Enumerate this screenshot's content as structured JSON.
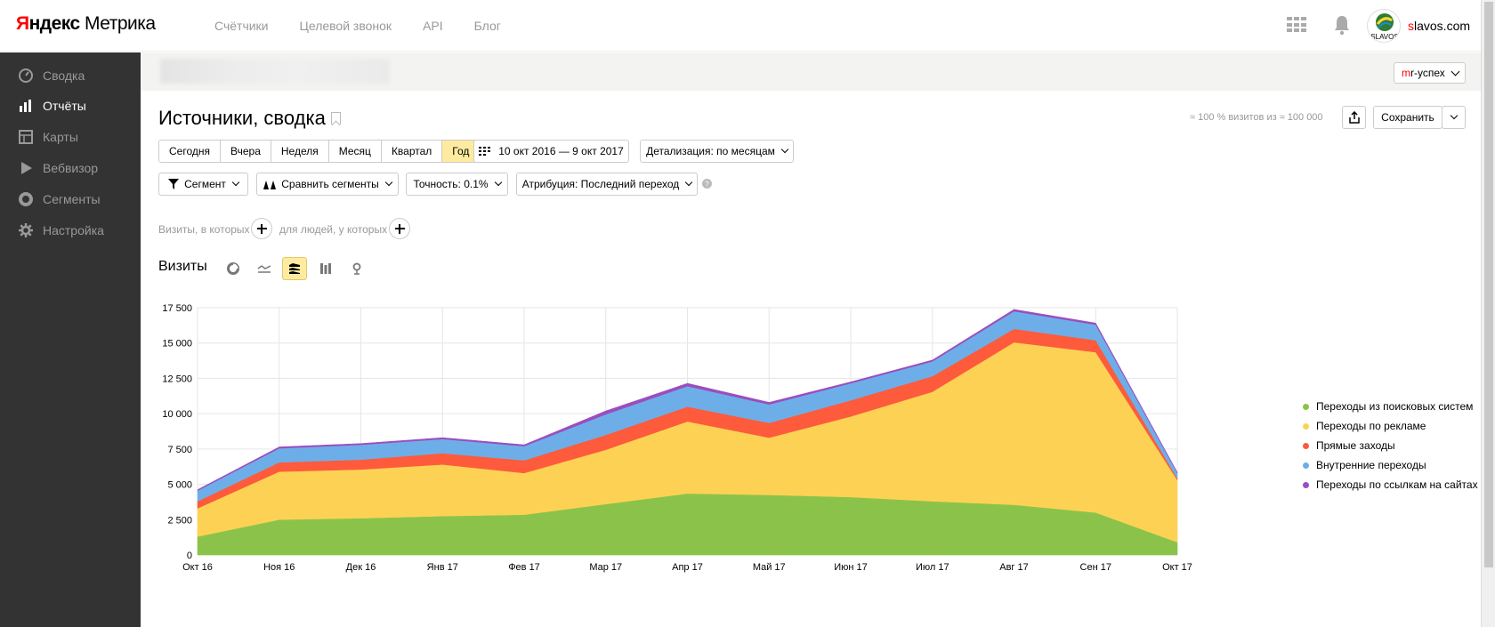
{
  "header": {
    "logo_brand": "Яндекс",
    "logo_product": "Метрика",
    "nav": [
      "Счётчики",
      "Целевой звонок",
      "API",
      "Блог"
    ],
    "username_first": "s",
    "username_rest": "lavos.com",
    "avatar_text": "SLAVOS"
  },
  "sidebar": {
    "items": [
      {
        "label": "Сводка",
        "icon": "gauge-icon",
        "active": false
      },
      {
        "label": "Отчёты",
        "icon": "bar-chart-icon",
        "active": true
      },
      {
        "label": "Карты",
        "icon": "map-grid-icon",
        "active": false
      },
      {
        "label": "Вебвизор",
        "icon": "play-icon",
        "active": false
      },
      {
        "label": "Сегменты",
        "icon": "pie-ring-icon",
        "active": false
      },
      {
        "label": "Настройка",
        "icon": "gear-icon",
        "active": false
      }
    ]
  },
  "counter": {
    "tag_first": "m",
    "tag_rest": "r-успех"
  },
  "report": {
    "title": "Источники, сводка",
    "visits_note": "≈ 100 % визитов из ≈ 100 000",
    "save_label": "Сохранить",
    "periods": [
      "Сегодня",
      "Вчера",
      "Неделя",
      "Месяц",
      "Квартал",
      "Год"
    ],
    "active_period": "Год",
    "date_range": "10 окт 2016 — 9 окт 2017",
    "detail": "Детализация: по месяцам",
    "segment": "Сегмент",
    "compare": "Сравнить сегменты",
    "accuracy": "Точность: 0.1%",
    "attribution": "Атрибуция: Последний переход",
    "visits_filter": "Визиты, в которых",
    "people_filter": "для людей, у которых",
    "chart_label": "Визиты"
  },
  "chart_data": {
    "type": "area",
    "stacked": true,
    "x": [
      "Окт 16",
      "Ноя 16",
      "Дек 16",
      "Янв 17",
      "Фев 17",
      "Мар 17",
      "Апр 17",
      "Май 17",
      "Июн 17",
      "Июл 17",
      "Авг 17",
      "Сен 17",
      "Окт 17"
    ],
    "ylim": [
      0,
      17500
    ],
    "yticks": [
      0,
      2500,
      5000,
      7500,
      10000,
      12500,
      15000,
      17500
    ],
    "ytick_labels": [
      "0",
      "2 500",
      "5 000",
      "7 500",
      "10 000",
      "12 500",
      "15 000",
      "17 500"
    ],
    "grid": true,
    "legend_position": "right",
    "series": [
      {
        "name": "Переходы из поисковых систем",
        "color": "#8bc34a",
        "values": [
          1300,
          2500,
          2600,
          2750,
          2850,
          3600,
          4350,
          4250,
          4100,
          3800,
          3550,
          3000,
          900
        ]
      },
      {
        "name": "Переходы по рекламе",
        "color": "#fdd254",
        "values": [
          2000,
          3400,
          3450,
          3650,
          2950,
          3850,
          5100,
          4050,
          5700,
          7750,
          11500,
          11350,
          4400
        ]
      },
      {
        "name": "Прямые заходы",
        "color": "#fd5b3c",
        "values": [
          500,
          650,
          700,
          800,
          900,
          1050,
          1050,
          1050,
          1150,
          1100,
          950,
          850,
          120
        ]
      },
      {
        "name": "Внутренние переходы",
        "color": "#6eaee8",
        "values": [
          750,
          1000,
          1050,
          1000,
          1000,
          1450,
          1450,
          1300,
          1200,
          1050,
          1250,
          1100,
          380
        ]
      },
      {
        "name": "Переходы по ссылкам на сайтах",
        "color": "#9b4dbf",
        "values": [
          70,
          100,
          90,
          100,
          100,
          250,
          200,
          150,
          100,
          100,
          130,
          120,
          50
        ]
      }
    ]
  }
}
